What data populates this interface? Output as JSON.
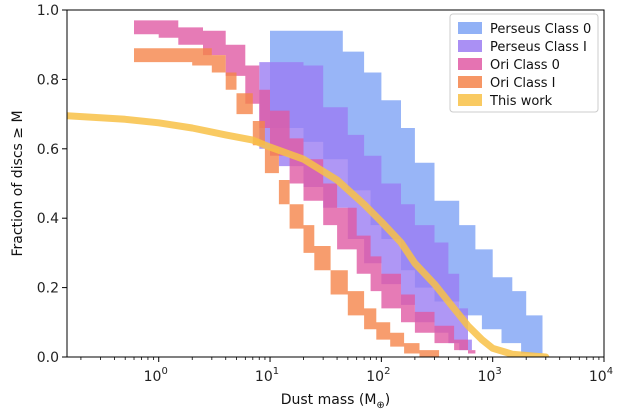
{
  "chart_data": {
    "type": "area",
    "xlabel": "Dust mass (M",
    "xlabel_sub": "⊕",
    "xlabel_close": ")",
    "ylabel": "Fraction of discs ≥ M",
    "x_scale": "log",
    "xlim": [
      0.15,
      10000
    ],
    "ylim": [
      0.0,
      1.0
    ],
    "x_ticks": [
      {
        "value": 1,
        "base": "10",
        "exp": "0"
      },
      {
        "value": 10,
        "base": "10",
        "exp": "1"
      },
      {
        "value": 100,
        "base": "10",
        "exp": "2"
      },
      {
        "value": 1000,
        "base": "10",
        "exp": "3"
      },
      {
        "value": 10000,
        "base": "10",
        "exp": "4"
      }
    ],
    "y_ticks": [
      "0.0",
      "0.2",
      "0.4",
      "0.6",
      "0.8",
      "1.0"
    ],
    "grid": false,
    "legend_position": "top-right",
    "series": [
      {
        "name": "Perseus Class 0",
        "color": "#7ea3f5",
        "upper": [
          [
            10,
            0.94
          ],
          [
            30,
            0.94
          ],
          [
            45,
            0.88
          ],
          [
            70,
            0.82
          ],
          [
            100,
            0.74
          ],
          [
            150,
            0.66
          ],
          [
            200,
            0.56
          ],
          [
            300,
            0.45
          ],
          [
            500,
            0.38
          ],
          [
            700,
            0.31
          ],
          [
            1000,
            0.23
          ],
          [
            1500,
            0.19
          ],
          [
            2000,
            0.12
          ],
          [
            2800,
            0.0
          ]
        ],
        "lower": [
          [
            10,
            0.66
          ],
          [
            20,
            0.62
          ],
          [
            30,
            0.57
          ],
          [
            50,
            0.48
          ],
          [
            80,
            0.38
          ],
          [
            100,
            0.34
          ],
          [
            150,
            0.25
          ],
          [
            200,
            0.2
          ],
          [
            300,
            0.16
          ],
          [
            500,
            0.12
          ],
          [
            800,
            0.08
          ],
          [
            1200,
            0.04
          ],
          [
            1800,
            0.01
          ],
          [
            2800,
            0.0
          ]
        ]
      },
      {
        "name": "Perseus Class I",
        "color": "#9b7df2",
        "upper": [
          [
            8,
            0.85
          ],
          [
            15,
            0.85
          ],
          [
            20,
            0.84
          ],
          [
            30,
            0.72
          ],
          [
            50,
            0.64
          ],
          [
            70,
            0.58
          ],
          [
            100,
            0.5
          ],
          [
            150,
            0.44
          ],
          [
            200,
            0.38
          ],
          [
            300,
            0.33
          ],
          [
            400,
            0.24
          ],
          [
            500,
            0.14
          ],
          [
            600,
            0.05
          ],
          [
            650,
            0.0
          ]
        ],
        "lower": [
          [
            8,
            0.6
          ],
          [
            12,
            0.55
          ],
          [
            20,
            0.49
          ],
          [
            30,
            0.43
          ],
          [
            50,
            0.34
          ],
          [
            70,
            0.27
          ],
          [
            100,
            0.21
          ],
          [
            150,
            0.15
          ],
          [
            200,
            0.1
          ],
          [
            300,
            0.07
          ],
          [
            400,
            0.04
          ],
          [
            500,
            0.02
          ],
          [
            650,
            0.0
          ]
        ]
      },
      {
        "name": "Ori Class 0",
        "color": "#e05aa4",
        "upper": [
          [
            0.6,
            0.97
          ],
          [
            1,
            0.97
          ],
          [
            1.5,
            0.95
          ],
          [
            2.5,
            0.94
          ],
          [
            4,
            0.9
          ],
          [
            6,
            0.84
          ],
          [
            8,
            0.77
          ],
          [
            10,
            0.71
          ],
          [
            15,
            0.63
          ],
          [
            20,
            0.57
          ],
          [
            30,
            0.5
          ],
          [
            40,
            0.43
          ],
          [
            60,
            0.35
          ],
          [
            80,
            0.29
          ],
          [
            100,
            0.24
          ],
          [
            150,
            0.18
          ],
          [
            200,
            0.13
          ],
          [
            300,
            0.09
          ],
          [
            450,
            0.05
          ],
          [
            600,
            0.02
          ],
          [
            700,
            0.0
          ]
        ],
        "lower": [
          [
            0.6,
            0.93
          ],
          [
            1,
            0.92
          ],
          [
            1.5,
            0.9
          ],
          [
            2.5,
            0.87
          ],
          [
            4,
            0.81
          ],
          [
            6,
            0.73
          ],
          [
            8,
            0.66
          ],
          [
            10,
            0.58
          ],
          [
            15,
            0.5
          ],
          [
            20,
            0.45
          ],
          [
            30,
            0.38
          ],
          [
            40,
            0.31
          ],
          [
            60,
            0.24
          ],
          [
            80,
            0.19
          ],
          [
            100,
            0.14
          ],
          [
            150,
            0.1
          ],
          [
            200,
            0.07
          ],
          [
            300,
            0.04
          ],
          [
            450,
            0.02
          ],
          [
            600,
            0.01
          ],
          [
            700,
            0.0
          ]
        ]
      },
      {
        "name": "Ori Class I",
        "color": "#f5844a",
        "upper": [
          [
            0.6,
            0.89
          ],
          [
            1,
            0.89
          ],
          [
            2,
            0.89
          ],
          [
            3,
            0.87
          ],
          [
            4,
            0.82
          ],
          [
            5,
            0.76
          ],
          [
            7,
            0.68
          ],
          [
            9,
            0.6
          ],
          [
            12,
            0.51
          ],
          [
            15,
            0.44
          ],
          [
            20,
            0.38
          ],
          [
            25,
            0.32
          ],
          [
            35,
            0.25
          ],
          [
            50,
            0.19
          ],
          [
            70,
            0.14
          ],
          [
            90,
            0.1
          ],
          [
            120,
            0.07
          ],
          [
            160,
            0.04
          ],
          [
            220,
            0.02
          ],
          [
            330,
            0.01
          ]
        ],
        "lower": [
          [
            0.6,
            0.85
          ],
          [
            1,
            0.85
          ],
          [
            2,
            0.84
          ],
          [
            3,
            0.82
          ],
          [
            4,
            0.77
          ],
          [
            5,
            0.7
          ],
          [
            7,
            0.61
          ],
          [
            9,
            0.53
          ],
          [
            12,
            0.44
          ],
          [
            15,
            0.37
          ],
          [
            20,
            0.3
          ],
          [
            25,
            0.25
          ],
          [
            35,
            0.18
          ],
          [
            50,
            0.12
          ],
          [
            70,
            0.08
          ],
          [
            90,
            0.05
          ],
          [
            120,
            0.03
          ],
          [
            160,
            0.01
          ],
          [
            220,
            0.0
          ],
          [
            330,
            0.0
          ]
        ]
      },
      {
        "name": "This work",
        "color": "#f8c146",
        "line": [
          [
            0.15,
            0.695
          ],
          [
            0.5,
            0.685
          ],
          [
            1,
            0.675
          ],
          [
            2,
            0.66
          ],
          [
            4,
            0.64
          ],
          [
            7,
            0.625
          ],
          [
            10,
            0.605
          ],
          [
            20,
            0.57
          ],
          [
            40,
            0.51
          ],
          [
            70,
            0.44
          ],
          [
            100,
            0.39
          ],
          [
            150,
            0.33
          ],
          [
            200,
            0.27
          ],
          [
            300,
            0.21
          ],
          [
            400,
            0.16
          ],
          [
            600,
            0.09
          ],
          [
            800,
            0.05
          ],
          [
            1000,
            0.025
          ],
          [
            1500,
            0.008
          ],
          [
            2500,
            0.002
          ],
          [
            3000,
            0.0
          ]
        ]
      }
    ]
  }
}
